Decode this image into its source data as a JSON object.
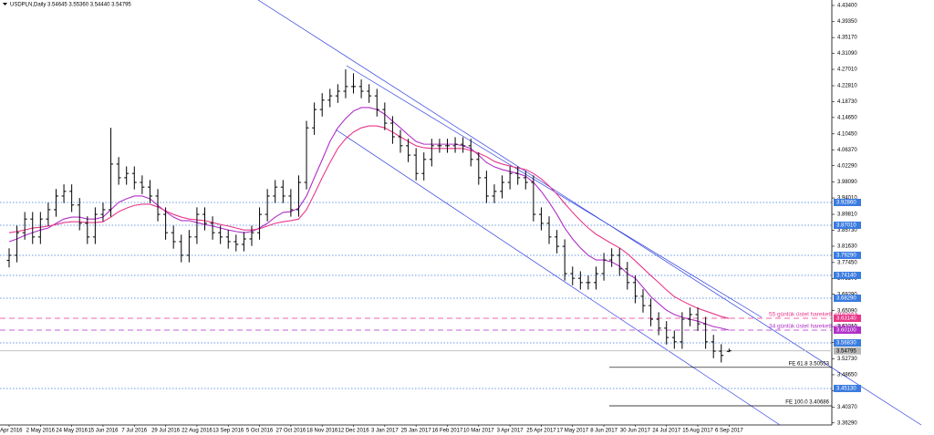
{
  "chart_data": {
    "type": "ohlc",
    "title": "USDPLN,Daily  3.54645 3.55360 3.54440 3.54795",
    "color": "#000000",
    "categories": [
      "8 Apr 2016",
      null,
      null,
      null,
      "2 May 2016",
      null,
      null,
      null,
      "24 May 2016",
      null,
      null,
      null,
      "15 Jun 2016",
      null,
      null,
      null,
      "7 Jul 2016",
      null,
      null,
      null,
      "29 Jul 2016",
      null,
      null,
      null,
      "22 Aug 2016",
      null,
      null,
      null,
      "13 Sep 2016",
      null,
      null,
      null,
      "5 Oct 2016",
      null,
      null,
      null,
      "27 Oct 2016",
      null,
      null,
      null,
      "18 Nov 2016",
      null,
      null,
      null,
      "12 Dec 2016",
      null,
      null,
      null,
      "3 Jan 2017",
      null,
      null,
      null,
      "25 Jan 2017",
      null,
      null,
      null,
      "16 Feb 2017",
      null,
      null,
      null,
      "10 Mar 2017",
      null,
      null,
      null,
      "3 Apr 2017",
      null,
      null,
      null,
      "25 Apr 2017",
      null,
      null,
      null,
      "17 May 2017",
      null,
      null,
      null,
      "8 Jun 2017",
      null,
      null,
      null,
      "30 Jun 2017",
      null,
      null,
      null,
      "24 Jul 2017",
      null,
      null,
      null,
      "15 Aug 2017",
      null,
      null,
      null,
      "6 Sep 2017"
    ],
    "open": [
      3.78,
      3.793,
      3.851,
      3.886,
      3.84,
      3.886,
      3.91,
      3.945,
      3.957,
      3.922,
      3.875,
      3.84,
      3.898,
      3.91,
      4.027,
      3.992,
      4.003,
      3.98,
      3.968,
      3.945,
      3.898,
      3.851,
      3.828,
      3.793,
      3.84,
      3.898,
      3.875,
      3.851,
      3.84,
      3.828,
      3.821,
      3.835,
      3.851,
      3.898,
      3.945,
      3.968,
      3.945,
      3.91,
      3.98,
      4.12,
      4.167,
      4.191,
      4.202,
      4.214,
      4.226,
      4.226,
      4.214,
      4.202,
      4.167,
      4.132,
      4.097,
      4.074,
      4.05,
      4.003,
      4.039,
      4.074,
      4.074,
      4.074,
      4.078,
      4.074,
      4.039,
      3.992,
      3.945,
      3.957,
      3.98,
      4.003,
      3.992,
      3.98,
      3.898,
      3.875,
      3.84,
      3.816,
      3.746,
      3.734,
      3.723,
      3.723,
      3.746,
      3.781,
      3.793,
      3.758,
      3.723,
      3.688,
      3.664,
      3.629,
      3.606,
      3.582,
      3.571,
      3.629,
      3.641,
      3.617,
      3.571,
      3.547,
      3.54645
    ],
    "high": [
      3.811,
      3.869,
      3.904,
      3.904,
      3.904,
      3.928,
      3.963,
      3.975,
      3.975,
      3.94,
      3.893,
      3.916,
      3.928,
      4.12,
      4.045,
      4.021,
      4.021,
      3.998,
      3.986,
      3.963,
      3.916,
      3.869,
      3.846,
      3.858,
      3.916,
      3.916,
      3.893,
      3.869,
      3.858,
      3.846,
      3.853,
      3.869,
      3.916,
      3.963,
      3.986,
      3.986,
      3.963,
      3.998,
      4.138,
      4.185,
      4.209,
      4.22,
      4.232,
      4.27,
      4.26,
      4.244,
      4.232,
      4.22,
      4.185,
      4.15,
      4.115,
      4.092,
      4.068,
      4.057,
      4.092,
      4.092,
      4.092,
      4.096,
      4.096,
      4.092,
      4.057,
      4.01,
      3.975,
      3.998,
      4.021,
      4.021,
      4.01,
      3.998,
      3.916,
      3.893,
      3.858,
      3.834,
      3.764,
      3.752,
      3.741,
      3.764,
      3.799,
      3.811,
      3.811,
      3.776,
      3.741,
      3.706,
      3.682,
      3.647,
      3.624,
      3.6,
      3.647,
      3.659,
      3.659,
      3.635,
      3.589,
      3.565,
      3.5536
    ],
    "low": [
      3.762,
      3.775,
      3.833,
      3.822,
      3.822,
      3.868,
      3.892,
      3.927,
      3.904,
      3.857,
      3.822,
      3.822,
      3.88,
      3.892,
      3.974,
      3.974,
      3.962,
      3.95,
      3.927,
      3.88,
      3.833,
      3.81,
      3.775,
      3.775,
      3.822,
      3.857,
      3.833,
      3.822,
      3.81,
      3.803,
      3.803,
      3.817,
      3.833,
      3.88,
      3.927,
      3.927,
      3.892,
      3.892,
      3.962,
      4.102,
      4.149,
      4.173,
      4.184,
      4.196,
      4.208,
      4.196,
      4.184,
      4.149,
      4.114,
      4.079,
      4.056,
      4.032,
      3.985,
      3.985,
      4.021,
      4.056,
      4.056,
      4.056,
      4.056,
      4.021,
      3.974,
      3.927,
      3.927,
      3.939,
      3.962,
      3.974,
      3.962,
      3.88,
      3.857,
      3.822,
      3.798,
      3.728,
      3.716,
      3.705,
      3.705,
      3.705,
      3.728,
      3.763,
      3.74,
      3.705,
      3.67,
      3.646,
      3.611,
      3.588,
      3.564,
      3.553,
      3.553,
      3.611,
      3.599,
      3.553,
      3.529,
      3.518,
      3.5444
    ],
    "close": [
      3.793,
      3.851,
      3.886,
      3.84,
      3.886,
      3.91,
      3.945,
      3.957,
      3.922,
      3.875,
      3.84,
      3.898,
      3.91,
      4.027,
      3.992,
      4.003,
      3.98,
      3.968,
      3.945,
      3.898,
      3.851,
      3.828,
      3.793,
      3.84,
      3.898,
      3.875,
      3.851,
      3.84,
      3.828,
      3.821,
      3.835,
      3.851,
      3.898,
      3.945,
      3.968,
      3.945,
      3.91,
      3.98,
      4.12,
      4.167,
      4.191,
      4.202,
      4.214,
      4.226,
      4.226,
      4.214,
      4.202,
      4.167,
      4.132,
      4.097,
      4.074,
      4.05,
      4.003,
      4.039,
      4.074,
      4.074,
      4.074,
      4.078,
      4.074,
      4.039,
      3.992,
      3.945,
      3.957,
      3.98,
      4.003,
      3.992,
      3.98,
      3.898,
      3.875,
      3.84,
      3.816,
      3.746,
      3.734,
      3.723,
      3.723,
      3.746,
      3.781,
      3.793,
      3.758,
      3.723,
      3.688,
      3.664,
      3.629,
      3.606,
      3.582,
      3.571,
      3.629,
      3.641,
      3.617,
      3.571,
      3.547,
      3.536,
      3.54795
    ],
    "series": [
      {
        "name": "34 günlük üstel hareketli ortalama",
        "color": "#b030c8",
        "values": [
          3.828,
          3.835,
          3.844,
          3.851,
          3.858,
          3.863,
          3.875,
          3.886,
          3.891,
          3.891,
          3.886,
          3.886,
          3.891,
          3.91,
          3.929,
          3.938,
          3.945,
          3.945,
          3.938,
          3.921,
          3.905,
          3.891,
          3.882,
          3.882,
          3.877,
          3.872,
          3.868,
          3.863,
          3.858,
          3.854,
          3.851,
          3.854,
          3.863,
          3.875,
          3.891,
          3.903,
          3.905,
          3.914,
          3.945,
          3.992,
          4.038,
          4.085,
          4.12,
          4.144,
          4.163,
          4.172,
          4.172,
          4.167,
          4.155,
          4.137,
          4.12,
          4.102,
          4.085,
          4.078,
          4.078,
          4.078,
          4.078,
          4.078,
          4.074,
          4.067,
          4.05,
          4.031,
          4.02,
          4.013,
          4.008,
          4.003,
          3.996,
          3.98,
          3.957,
          3.929,
          3.898,
          3.863,
          3.835,
          3.812,
          3.793,
          3.781,
          3.781,
          3.776,
          3.765,
          3.746,
          3.734,
          3.711,
          3.687,
          3.669,
          3.652,
          3.641,
          3.634,
          3.629,
          3.624,
          3.617,
          3.61,
          3.606,
          3.601
        ]
      },
      {
        "name": "55 günlük üstel hareketli ortalama",
        "color": "#e8388a",
        "values": [
          3.851,
          3.854,
          3.858,
          3.863,
          3.865,
          3.868,
          3.872,
          3.877,
          3.879,
          3.879,
          3.877,
          3.877,
          3.879,
          3.891,
          3.905,
          3.914,
          3.921,
          3.924,
          3.924,
          3.917,
          3.907,
          3.898,
          3.891,
          3.886,
          3.884,
          3.882,
          3.877,
          3.872,
          3.868,
          3.863,
          3.858,
          3.858,
          3.861,
          3.868,
          3.875,
          3.879,
          3.882,
          3.886,
          3.91,
          3.95,
          3.992,
          4.031,
          4.067,
          4.092,
          4.109,
          4.12,
          4.125,
          4.125,
          4.12,
          4.109,
          4.097,
          4.085,
          4.074,
          4.069,
          4.067,
          4.067,
          4.067,
          4.067,
          4.067,
          4.062,
          4.055,
          4.046,
          4.034,
          4.027,
          4.022,
          4.017,
          4.013,
          4.003,
          3.989,
          3.971,
          3.95,
          3.926,
          3.903,
          3.882,
          3.863,
          3.847,
          3.835,
          3.823,
          3.812,
          3.797,
          3.779,
          3.76,
          3.741,
          3.723,
          3.704,
          3.687,
          3.676,
          3.666,
          3.657,
          3.65,
          3.643,
          3.636,
          3.631
        ]
      }
    ],
    "ylim": [
      3.36,
      4.448
    ],
    "yticks": [
      {
        "value": 4.434,
        "label": "4.43400"
      },
      {
        "value": 4.3935,
        "label": "4.39350"
      },
      {
        "value": 4.3517,
        "label": "4.35170"
      },
      {
        "value": 4.3109,
        "label": "4.31090"
      },
      {
        "value": 4.2701,
        "label": "4.27010"
      },
      {
        "value": 4.2281,
        "label": "4.22810"
      },
      {
        "value": 4.1873,
        "label": "4.18730"
      },
      {
        "value": 4.1465,
        "label": "4.14650"
      },
      {
        "value": 4.1045,
        "label": "4.10450"
      },
      {
        "value": 4.0637,
        "label": "4.06370"
      },
      {
        "value": 4.0229,
        "label": "4.02290"
      },
      {
        "value": 3.9809,
        "label": "3.98090"
      },
      {
        "value": 3.9401,
        "label": "3.94010"
      },
      {
        "value": 3.8981,
        "label": "3.89810"
      },
      {
        "value": 3.8573,
        "label": "3.85730"
      },
      {
        "value": 3.8163,
        "label": "3.81630"
      },
      {
        "value": 3.7745,
        "label": "3.77450"
      },
      {
        "value": 3.7337,
        "label": "3.73370"
      },
      {
        "value": 3.6929,
        "label": "3.69290"
      },
      {
        "value": 3.6509,
        "label": "3.65090"
      },
      {
        "value": 3.6101,
        "label": "3.61010"
      },
      {
        "value": 3.5693,
        "label": "3.56930"
      },
      {
        "value": 3.5273,
        "label": "3.52730"
      },
      {
        "value": 3.4865,
        "label": "3.48650"
      },
      {
        "value": 3.4457,
        "label": "3.44570"
      },
      {
        "value": 3.4037,
        "label": "3.40370"
      },
      {
        "value": 3.3629,
        "label": "3.36290"
      }
    ],
    "grid": false,
    "levels": [
      {
        "value": 3.9286,
        "label": "3.92860",
        "color": "#3a7be0",
        "style": "dot"
      },
      {
        "value": 3.8701,
        "label": "3.87010",
        "color": "#3a7be0",
        "style": "dot"
      },
      {
        "value": 3.7929,
        "label": "3.79290",
        "color": "#3a7be0",
        "style": "dot"
      },
      {
        "value": 3.7414,
        "label": "3.74140",
        "color": "#3a7be0",
        "style": "dot"
      },
      {
        "value": 3.6829,
        "label": "3.68290",
        "color": "#3a7be0",
        "style": "dot"
      },
      {
        "value": 3.6314,
        "label": "3.63140",
        "color": "#e8388a",
        "style": "dash"
      },
      {
        "value": 3.601,
        "label": "3.60100",
        "color": "#b030c8",
        "style": "dash"
      },
      {
        "value": 3.5683,
        "label": "3.56830",
        "color": "#3a7be0",
        "style": "dot"
      },
      {
        "value": 3.54795,
        "label": "3.54795",
        "color": "#b8b8b8",
        "style": "solid"
      },
      {
        "value": 3.4513,
        "label": "3.45130",
        "color": "#3a7be0",
        "style": "dot"
      }
    ],
    "fib_levels": [
      {
        "value": 3.50553,
        "label": "FE 61.8 3.50553"
      },
      {
        "value": 3.40686,
        "label": "FE 100.0 3.40686"
      }
    ]
  }
}
